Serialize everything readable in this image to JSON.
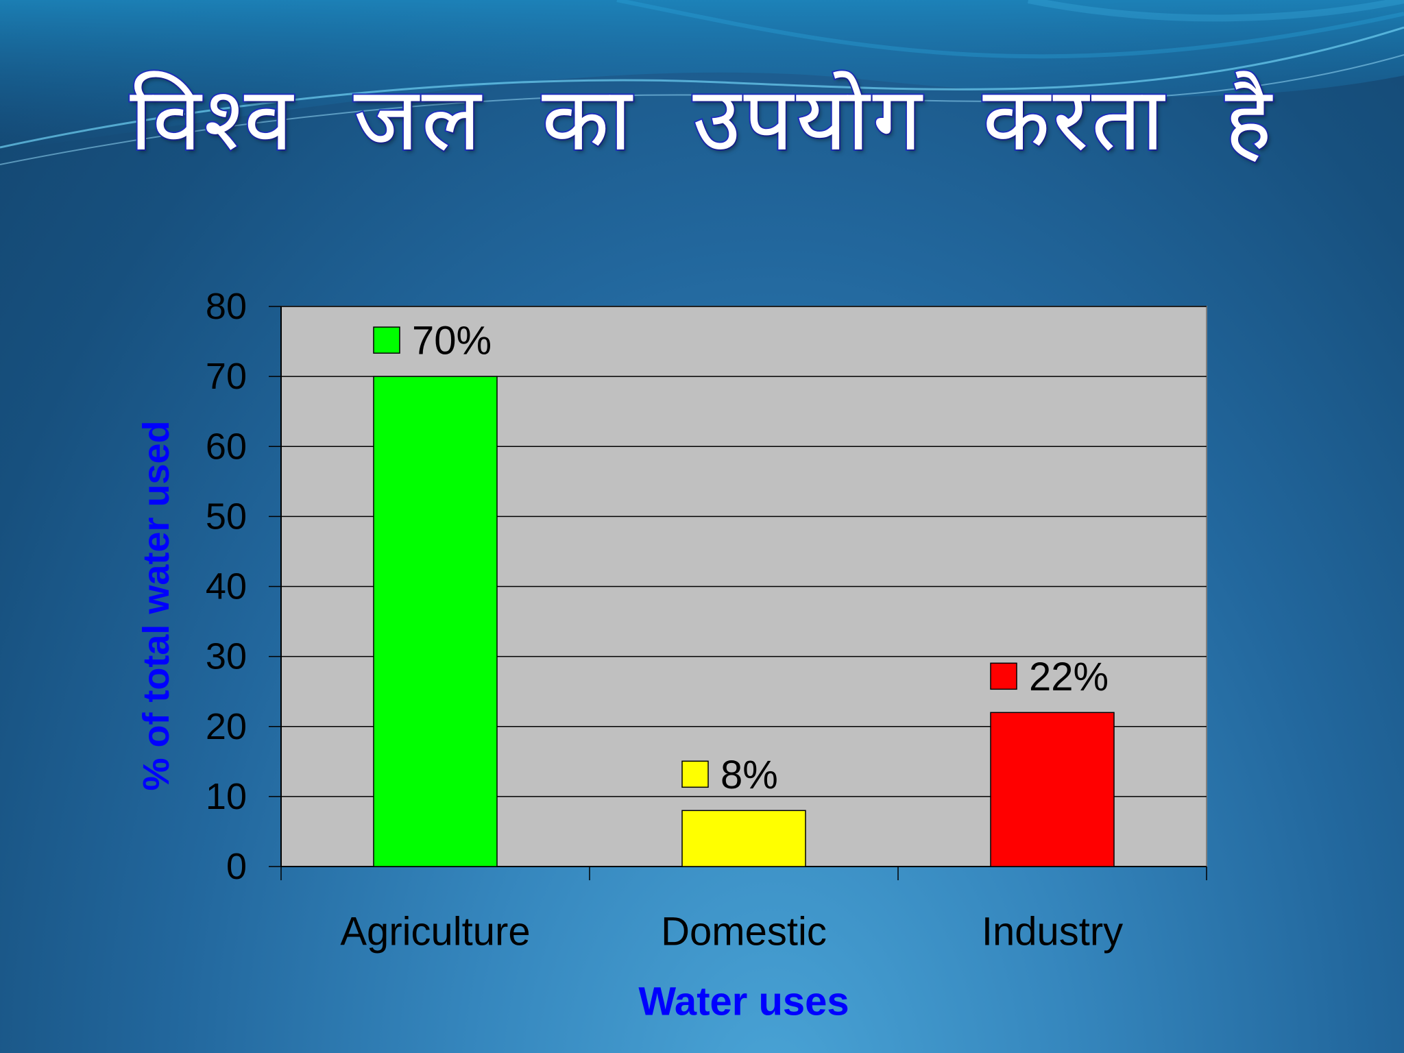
{
  "slide": {
    "title": "विश्व जल का उपयोग करता है"
  },
  "chart_data": {
    "type": "bar",
    "categories": [
      "Agriculture",
      "Domestic",
      "Industry"
    ],
    "values": [
      70,
      8,
      22
    ],
    "data_labels": [
      "70%",
      "8%",
      "22%"
    ],
    "colors": [
      "#00ff00",
      "#ffff00",
      "#ff0000"
    ],
    "xlabel": "Water uses",
    "ylabel": "% of total water used",
    "ylim": [
      0,
      80
    ],
    "yticks": [
      0,
      10,
      20,
      30,
      40,
      50,
      60,
      70,
      80
    ],
    "grid": true,
    "plot_background": "#c0c0c0",
    "axis_title_color": "#0000ff"
  }
}
